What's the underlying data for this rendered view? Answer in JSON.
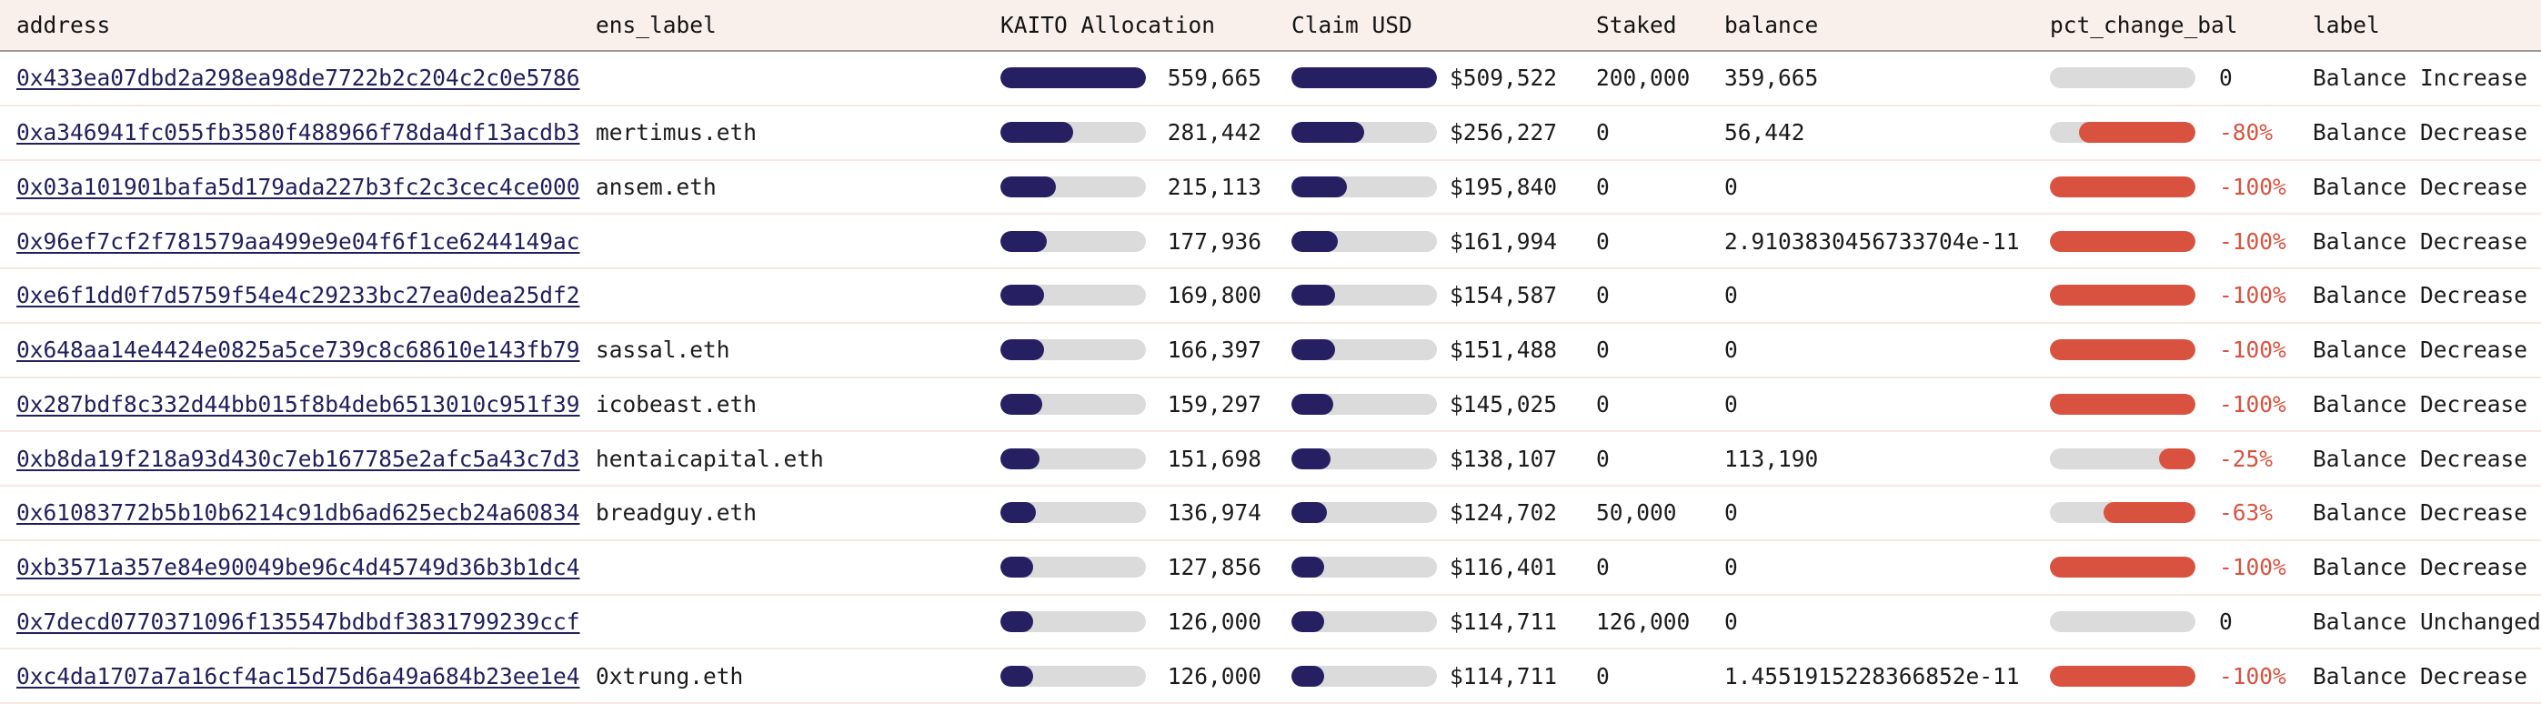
{
  "colors": {
    "header_bg": "#f9efeb",
    "header_border": "#9b9b9b",
    "row_border": "#f8e7e2",
    "bar_fill_navy": "#262063",
    "bar_track_gray": "#dbdbdb",
    "bar_fill_red": "#d9523f",
    "negative_text_red": "#d9523f",
    "address_link_navy": "#21205c",
    "body_text": "#1b1b1b"
  },
  "table": {
    "columns": [
      {
        "label": "address"
      },
      {
        "label": "ens_label"
      },
      {
        "label": "KAITO Allocation"
      },
      {
        "label": "Claim USD"
      },
      {
        "label": "Staked"
      },
      {
        "label": "balance"
      },
      {
        "label": "pct_change_bal"
      },
      {
        "label": "label"
      }
    ],
    "rows": [
      {
        "address": "0x433ea07dbd2a298ea98de7722b2c204c2c0e5786",
        "ens_label": "",
        "allocation": "559,665",
        "allocation_fill_pct": 100,
        "claim_usd": "$509,522",
        "claim_fill_pct": 100,
        "staked": "200,000",
        "balance": "359,665",
        "pct_change": "0",
        "pct_change_fill_pct": 0,
        "label": "Balance Increase"
      },
      {
        "address": "0xa346941fc055fb3580f488966f78da4df13acdb3",
        "ens_label": "mertimus.eth",
        "allocation": "281,442",
        "allocation_fill_pct": 50.3,
        "claim_usd": "$256,227",
        "claim_fill_pct": 50.3,
        "staked": "0",
        "balance": "56,442",
        "pct_change": "-80%",
        "pct_change_fill_pct": 80,
        "label": "Balance Decrease"
      },
      {
        "address": "0x03a101901bafa5d179ada227b3fc2c3cec4ce000",
        "ens_label": "ansem.eth",
        "allocation": "215,113",
        "allocation_fill_pct": 38.4,
        "claim_usd": "$195,840",
        "claim_fill_pct": 38.4,
        "staked": "0",
        "balance": "0",
        "pct_change": "-100%",
        "pct_change_fill_pct": 100,
        "label": "Balance Decrease"
      },
      {
        "address": "0x96ef7cf2f781579aa499e9e04f6f1ce6244149ac",
        "ens_label": "",
        "allocation": "177,936",
        "allocation_fill_pct": 31.8,
        "claim_usd": "$161,994",
        "claim_fill_pct": 31.8,
        "staked": "0",
        "balance": "2.9103830456733704e-11",
        "pct_change": "-100%",
        "pct_change_fill_pct": 100,
        "label": "Balance Decrease"
      },
      {
        "address": "0xe6f1dd0f7d5759f54e4c29233bc27ea0dea25df2",
        "ens_label": "",
        "allocation": "169,800",
        "allocation_fill_pct": 30.3,
        "claim_usd": "$154,587",
        "claim_fill_pct": 30.3,
        "staked": "0",
        "balance": "0",
        "pct_change": "-100%",
        "pct_change_fill_pct": 100,
        "label": "Balance Decrease"
      },
      {
        "address": "0x648aa14e4424e0825a5ce739c8c68610e143fb79",
        "ens_label": "sassal.eth",
        "allocation": "166,397",
        "allocation_fill_pct": 29.7,
        "claim_usd": "$151,488",
        "claim_fill_pct": 29.7,
        "staked": "0",
        "balance": "0",
        "pct_change": "-100%",
        "pct_change_fill_pct": 100,
        "label": "Balance Decrease"
      },
      {
        "address": "0x287bdf8c332d44bb015f8b4deb6513010c951f39",
        "ens_label": "icobeast.eth",
        "allocation": "159,297",
        "allocation_fill_pct": 28.5,
        "claim_usd": "$145,025",
        "claim_fill_pct": 28.5,
        "staked": "0",
        "balance": "0",
        "pct_change": "-100%",
        "pct_change_fill_pct": 100,
        "label": "Balance Decrease"
      },
      {
        "address": "0xb8da19f218a93d430c7eb167785e2afc5a43c7d3",
        "ens_label": "hentaicapital.eth",
        "allocation": "151,698",
        "allocation_fill_pct": 27.1,
        "claim_usd": "$138,107",
        "claim_fill_pct": 27.1,
        "staked": "0",
        "balance": "113,190",
        "pct_change": "-25%",
        "pct_change_fill_pct": 25,
        "label": "Balance Decrease"
      },
      {
        "address": "0x61083772b5b10b6214c91db6ad625ecb24a60834",
        "ens_label": "breadguy.eth",
        "allocation": "136,974",
        "allocation_fill_pct": 24.5,
        "claim_usd": "$124,702",
        "claim_fill_pct": 24.5,
        "staked": "50,000",
        "balance": "0",
        "pct_change": "-63%",
        "pct_change_fill_pct": 63,
        "label": "Balance Decrease"
      },
      {
        "address": "0xb3571a357e84e90049be96c4d45749d36b3b1dc4",
        "ens_label": "",
        "allocation": "127,856",
        "allocation_fill_pct": 22.8,
        "claim_usd": "$116,401",
        "claim_fill_pct": 22.8,
        "staked": "0",
        "balance": "0",
        "pct_change": "-100%",
        "pct_change_fill_pct": 100,
        "label": "Balance Decrease"
      },
      {
        "address": "0x7decd0770371096f135547bdbdf3831799239ccf",
        "ens_label": "",
        "allocation": "126,000",
        "allocation_fill_pct": 22.5,
        "claim_usd": "$114,711",
        "claim_fill_pct": 22.5,
        "staked": "126,000",
        "balance": "0",
        "pct_change": "0",
        "pct_change_fill_pct": 0,
        "label": "Balance Unchanged"
      },
      {
        "address": "0xc4da1707a7a16cf4ac15d75d6a49a684b23ee1e4",
        "ens_label": "0xtrung.eth",
        "allocation": "126,000",
        "allocation_fill_pct": 22.5,
        "claim_usd": "$114,711",
        "claim_fill_pct": 22.5,
        "staked": "0",
        "balance": "1.4551915228366852e-11",
        "pct_change": "-100%",
        "pct_change_fill_pct": 100,
        "label": "Balance Decrease"
      }
    ]
  }
}
